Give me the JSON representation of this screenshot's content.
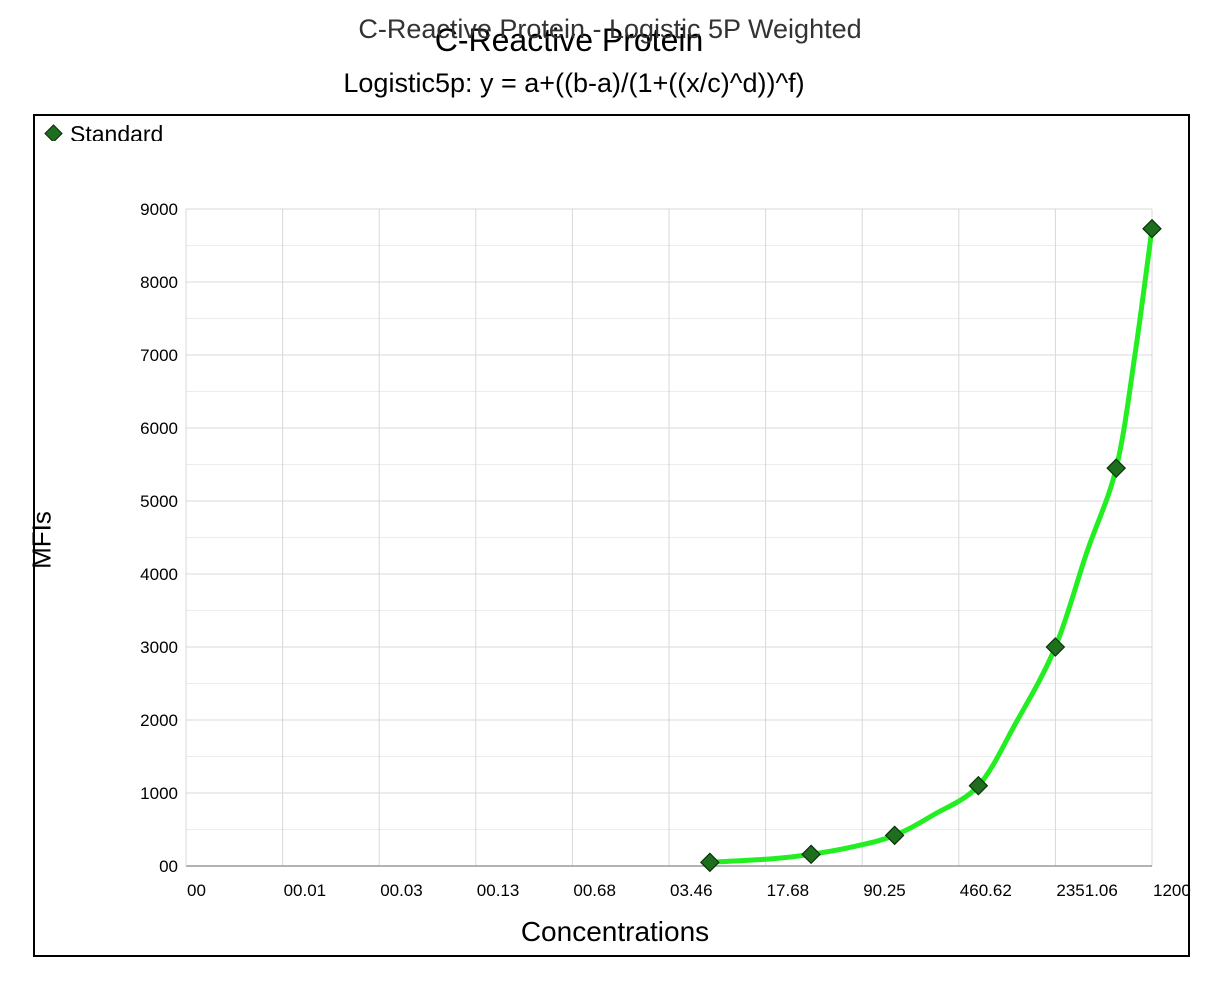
{
  "page": {
    "title": "C-Reactive Protein",
    "subtitle": "Logistic5p: y = a+((b-a)/(1+((x/c)^d))^f)"
  },
  "chart_data": {
    "type": "scatter",
    "title": "C-Reactive Protein - Logistic 5P Weighted",
    "xlabel": "Concentrations",
    "ylabel": "MFIs",
    "x_scale": "log",
    "x_tick_labels": [
      "00",
      "00.01",
      "00.03",
      "00.13",
      "00.68",
      "03.46",
      "17.68",
      "90.25",
      "460.62",
      "2351.06",
      "1200"
    ],
    "y_tick_labels": [
      "00",
      "1000",
      "2000",
      "3000",
      "4000",
      "5000",
      "6000",
      "7000",
      "8000",
      "9000"
    ],
    "ylim": [
      0,
      9000
    ],
    "grid": true,
    "legend": {
      "position": "top-left",
      "entries": [
        "Standard"
      ]
    },
    "series": [
      {
        "name": "Standard",
        "marker": "diamond",
        "color": "#1d6e1d",
        "x": [
          6.9,
          38.1,
          156,
          641,
          2350,
          6560,
          12000
        ],
        "y": [
          50,
          160,
          420,
          1100,
          3000,
          5450,
          8730
        ]
      }
    ],
    "fit_curve": {
      "color": "#22ee22",
      "x": [
        6.9,
        20,
        38.1,
        80,
        156,
        300,
        641,
        1200,
        2350,
        4000,
        6560,
        9000,
        12000
      ],
      "y": [
        50,
        100,
        160,
        270,
        420,
        700,
        1100,
        1950,
        3000,
        4300,
        5450,
        7000,
        8730
      ]
    }
  }
}
